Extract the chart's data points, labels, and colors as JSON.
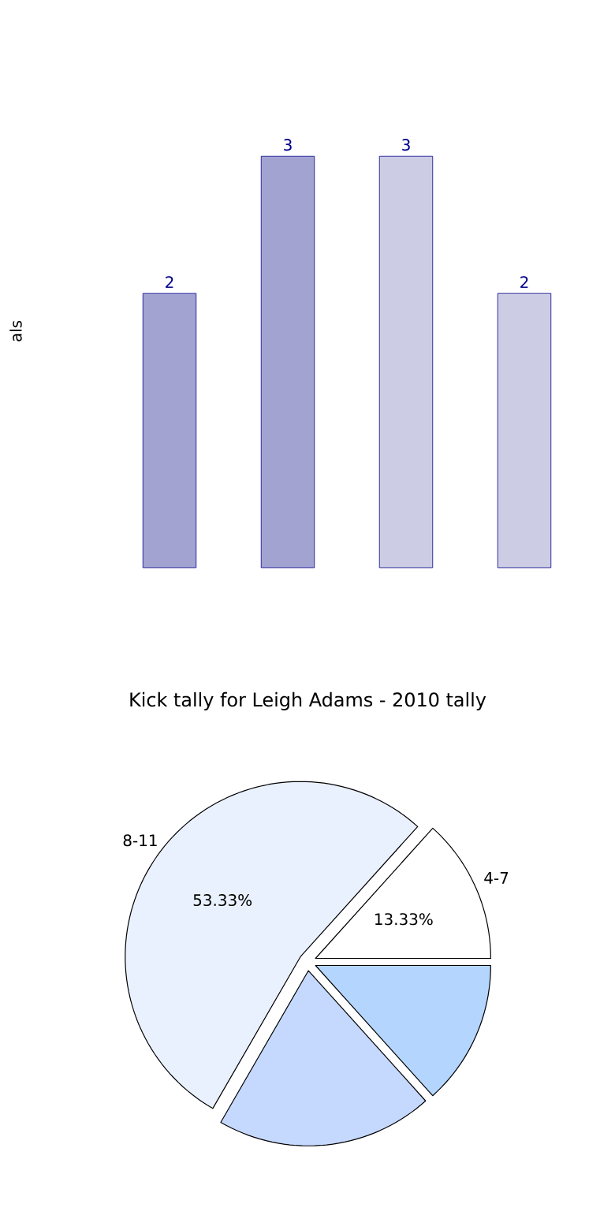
{
  "chart_data": [
    {
      "type": "bar",
      "ylabel": "als",
      "categories": [
        null,
        null,
        null,
        null
      ],
      "values": [
        2,
        3,
        3,
        2
      ],
      "colors": [
        "#a3a3d1",
        "#a3a3d1",
        "#cccce4",
        "#cccce4"
      ],
      "data_labels": true
    },
    {
      "type": "pie",
      "title": "Kick tally for Leigh Adams - 2010 tally",
      "categories": [
        "4-7",
        "8-11",
        null,
        null
      ],
      "values": [
        13.33,
        53.33,
        20,
        13.34
      ],
      "value_labels": [
        "13.33%",
        "53.33%",
        null,
        null
      ],
      "colors": [
        "#ffffff",
        "#eaf1fe",
        "#c5d8fe",
        "#b4d5fe"
      ]
    }
  ]
}
